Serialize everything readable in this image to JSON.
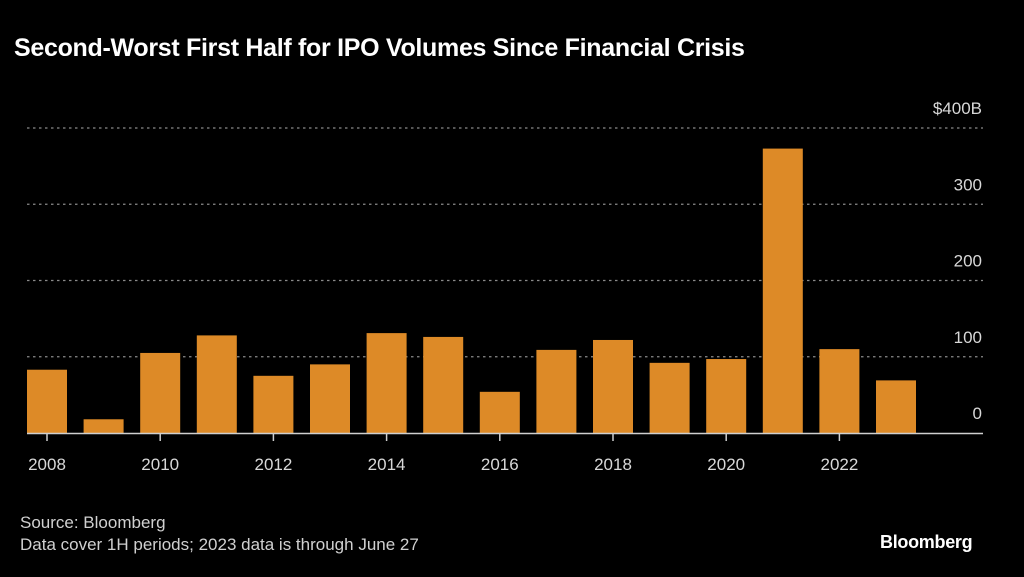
{
  "chart_data": {
    "type": "bar",
    "title": "Second-Worst First Half for IPO Volumes Since Financial Crisis",
    "xlabel": "",
    "ylabel": "",
    "categories": [
      "2008",
      "2009",
      "2010",
      "2011",
      "2012",
      "2013",
      "2014",
      "2015",
      "2016",
      "2017",
      "2018",
      "2019",
      "2020",
      "2021",
      "2022",
      "2023"
    ],
    "values": [
      83,
      18,
      105,
      128,
      75,
      90,
      131,
      126,
      54,
      109,
      122,
      92,
      97,
      373,
      110,
      69
    ],
    "unit": "$B",
    "ylim": [
      0,
      400
    ],
    "yticks": [
      0,
      100,
      200,
      300,
      400
    ],
    "ytick_labels": [
      "0",
      "100",
      "200",
      "300",
      "$400B"
    ],
    "xtick_labels": [
      "2008",
      "2010",
      "2012",
      "2014",
      "2016",
      "2018",
      "2020",
      "2022"
    ],
    "grid": true,
    "legend": "none",
    "bar_color": "#DD8A27"
  },
  "footer": {
    "source": "Source: Bloomberg",
    "note": "Data cover 1H periods; 2023 data is through June 27",
    "brand": "Bloomberg"
  }
}
